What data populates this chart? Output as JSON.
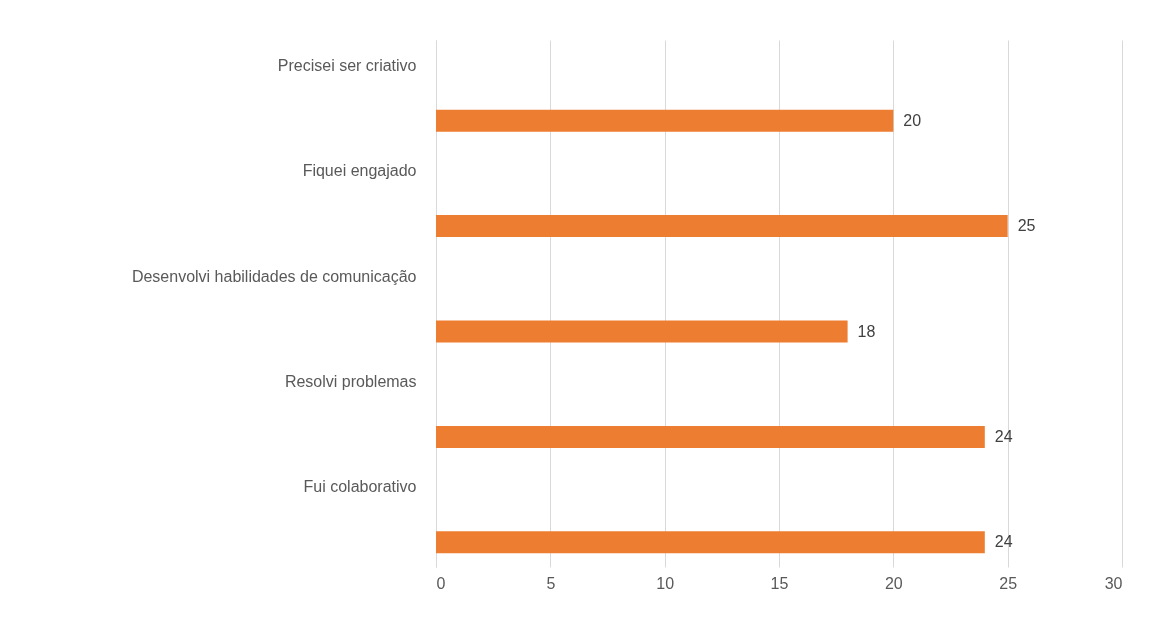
{
  "chart_data": {
    "type": "bar",
    "orientation": "horizontal",
    "categories": [
      "Precisei ser criativo",
      "Fiquei engajado",
      "Desenvolvi habilidades de comunicação",
      "Resolvi problemas",
      "Fui colaborativo"
    ],
    "values": [
      20,
      25,
      18,
      24,
      24
    ],
    "color": "#ed7d31",
    "xlim": [
      0,
      30
    ],
    "xticks": [
      0,
      5,
      10,
      15,
      20,
      25,
      30
    ],
    "grid": "x",
    "data_labels": true
  }
}
